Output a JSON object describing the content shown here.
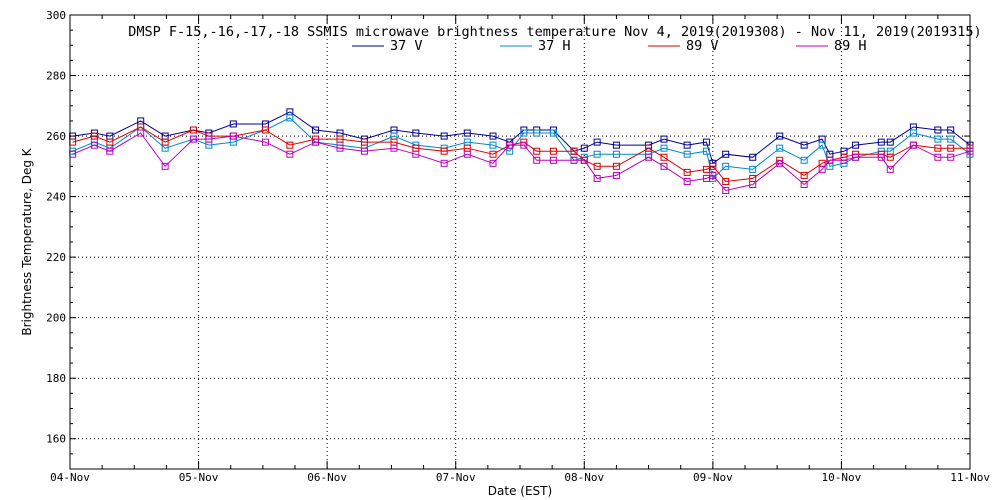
{
  "chart_data": {
    "type": "line",
    "title": "DMSP F-15,-16,-17,-18 SSMIS microwave brightness temperature Nov  4, 2019(2019308) - Nov 11, 2019(2019315)",
    "xlabel": "Date (EST)",
    "ylabel": "Brightness Temperature, Deg K",
    "ylim": [
      150,
      300
    ],
    "yticks": [
      160,
      180,
      200,
      220,
      240,
      260,
      280,
      300
    ],
    "xlim": [
      0,
      7
    ],
    "xticks": [
      0,
      1,
      2,
      3,
      4,
      5,
      6,
      7
    ],
    "xtick_labels": [
      "04-Nov",
      "05-Nov",
      "06-Nov",
      "07-Nov",
      "08-Nov",
      "09-Nov",
      "10-Nov",
      "11-Nov"
    ],
    "grid": true,
    "legend_position": "top",
    "x": [
      0.02,
      0.19,
      0.31,
      0.55,
      0.74,
      0.96,
      1.08,
      1.27,
      1.52,
      1.71,
      1.91,
      2.1,
      2.29,
      2.52,
      2.69,
      2.91,
      3.09,
      3.29,
      3.42,
      3.53,
      3.63,
      3.76,
      3.92,
      4.0,
      4.1,
      4.25,
      4.5,
      4.62,
      4.8,
      4.95,
      5.0,
      5.1,
      5.31,
      5.52,
      5.71,
      5.85,
      5.91,
      6.02,
      6.11,
      6.31,
      6.38,
      6.56,
      6.75,
      6.85,
      7.0
    ],
    "series": [
      {
        "name": "37 V",
        "color": "#00008b",
        "values": [
          260,
          261,
          260,
          265,
          260,
          262,
          261,
          264,
          264,
          268,
          262,
          261,
          259,
          262,
          261,
          260,
          261,
          260,
          258,
          262,
          262,
          262,
          255,
          256,
          258,
          257,
          257,
          259,
          257,
          258,
          251,
          254,
          253,
          260,
          257,
          259,
          254,
          255,
          257,
          258,
          258,
          263,
          262,
          262,
          257
        ]
      },
      {
        "name": "37 H",
        "color": "#0088cc",
        "values": [
          255,
          258,
          256,
          263,
          256,
          259,
          257,
          258,
          262,
          266,
          258,
          257,
          256,
          260,
          257,
          256,
          258,
          257,
          255,
          261,
          261,
          261,
          252,
          253,
          254,
          254,
          254,
          256,
          254,
          255,
          246,
          250,
          249,
          256,
          252,
          257,
          250,
          251,
          253,
          255,
          255,
          261,
          259,
          259,
          254
        ]
      },
      {
        "name": "89 V",
        "color": "#dd0000",
        "values": [
          258,
          260,
          258,
          263,
          258,
          262,
          260,
          260,
          262,
          257,
          259,
          259,
          258,
          258,
          256,
          255,
          256,
          254,
          257,
          258,
          255,
          255,
          255,
          252,
          250,
          250,
          256,
          253,
          248,
          249,
          250,
          245,
          246,
          252,
          247,
          251,
          252,
          253,
          254,
          254,
          253,
          257,
          256,
          256,
          256
        ]
      },
      {
        "name": "89 H",
        "color": "#bb00bb",
        "values": [
          254,
          257,
          255,
          261,
          250,
          259,
          259,
          260,
          258,
          254,
          258,
          256,
          255,
          256,
          254,
          251,
          254,
          251,
          257,
          257,
          252,
          252,
          252,
          252,
          246,
          247,
          253,
          250,
          245,
          246,
          247,
          242,
          244,
          251,
          244,
          249,
          252,
          252,
          253,
          253,
          249,
          257,
          253,
          253,
          255
        ]
      }
    ]
  }
}
